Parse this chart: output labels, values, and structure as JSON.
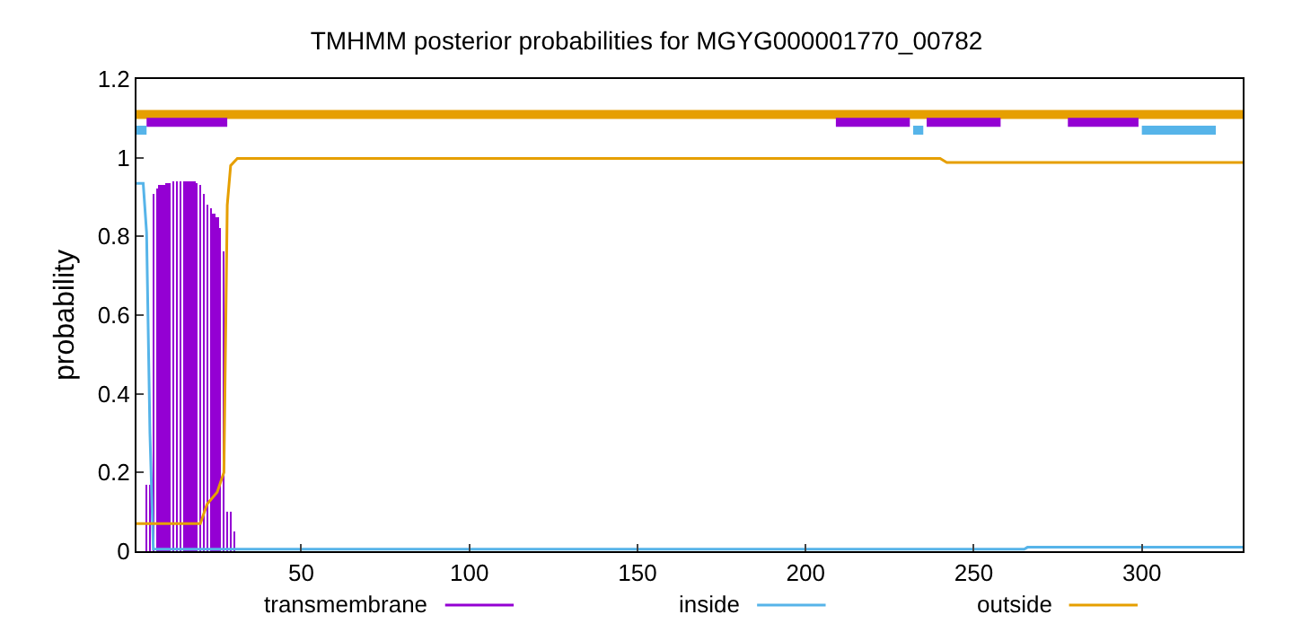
{
  "chart_data": {
    "type": "line",
    "title": "TMHMM posterior probabilities for MGYG000001770_00782",
    "ylabel": "probability",
    "xlim": [
      1,
      330
    ],
    "xticks": [
      50,
      100,
      150,
      200,
      250,
      300
    ],
    "ylim": [
      0,
      1.2
    ],
    "yticks": [
      0,
      0.2,
      0.4,
      0.6,
      0.8,
      1,
      1.2
    ],
    "grid": false,
    "legend": "bottom",
    "marker": "none",
    "line_style": "solid",
    "series": [
      {
        "name": "transmembrane",
        "type": "bar",
        "color": "#9400d3",
        "x": [
          4,
          5,
          6,
          7,
          8,
          9,
          10,
          11,
          12,
          13,
          14,
          15,
          16,
          17,
          18,
          19,
          20,
          21,
          22,
          23,
          24,
          25,
          26,
          27,
          28,
          29,
          30
        ],
        "values": [
          0.17,
          0.17,
          0.91,
          0.92,
          0.93,
          0.93,
          0.935,
          0.935,
          0.94,
          0.94,
          0.94,
          0.94,
          0.94,
          0.94,
          0.94,
          0.935,
          0.93,
          0.91,
          0.88,
          0.87,
          0.86,
          0.85,
          0.82,
          0.76,
          0.1,
          0.1,
          0.05
        ]
      },
      {
        "name": "inside",
        "color": "#56b4e9",
        "x": [
          1,
          3,
          4,
          5,
          6,
          30,
          265,
          266,
          330
        ],
        "values": [
          0.935,
          0.935,
          0.81,
          0.3,
          0.005,
          0.005,
          0.005,
          0.01,
          0.01
        ]
      },
      {
        "name": "outside",
        "color": "#e69f00",
        "x": [
          1,
          20,
          22,
          25,
          27,
          28,
          29,
          31,
          240,
          242,
          330
        ],
        "values": [
          0.07,
          0.07,
          0.12,
          0.15,
          0.2,
          0.88,
          0.98,
          0.998,
          0.998,
          0.988,
          0.988
        ]
      },
      {
        "color": "#e69f00",
        "x": [
          1,
          330
        ],
        "values": [
          1.11,
          1.11
        ]
      },
      {
        "color": "#9400d3",
        "x": [
          4,
          28,
          29,
          209,
          231,
          232,
          236,
          258,
          259,
          278,
          299
        ],
        "values": [
          1.09,
          1.09,
          null,
          1.09,
          1.09,
          null,
          1.09,
          1.09,
          null,
          1.09,
          1.09
        ]
      },
      {
        "color": "#56b4e9",
        "x": [
          1,
          4,
          5,
          232,
          235,
          236,
          300,
          322
        ],
        "values": [
          1.07,
          1.07,
          null,
          1.07,
          1.07,
          null,
          1.07,
          1.07
        ]
      }
    ]
  }
}
